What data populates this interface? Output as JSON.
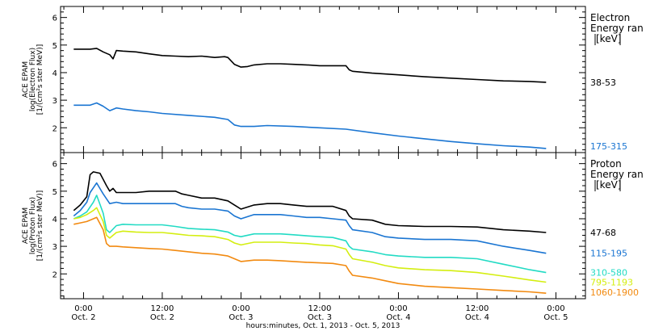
{
  "xlabel": "hours:minutes, Oct. 1, 2013 - Oct. 5, 2013",
  "x_ticks": [
    {
      "time": "0:00",
      "day": "Oct. 2",
      "hour": 0
    },
    {
      "time": "12:00",
      "day": "Oct. 2",
      "hour": 12
    },
    {
      "time": "0:00",
      "day": "Oct. 3",
      "hour": 24
    },
    {
      "time": "12:00",
      "day": "Oct. 3",
      "hour": 36
    },
    {
      "time": "0:00",
      "day": "Oct. 4",
      "hour": 48
    },
    {
      "time": "12:00",
      "day": "Oct. 4",
      "hour": 60
    },
    {
      "time": "0:00",
      "day": "Oct. 5",
      "hour": 72
    }
  ],
  "chart_data": [
    {
      "type": "line",
      "ylabel": [
        "ACE EPAM",
        "log(Electron Flux)",
        "[1/(cm²s ster MeV)]"
      ],
      "ylim": [
        1.1,
        6.4
      ],
      "yticks": [
        2,
        3,
        4,
        5,
        6
      ],
      "legend_title": [
        "Electron",
        "Energy ran",
        "[keV]"
      ],
      "series": [
        {
          "name": "38-53",
          "color": "#000000",
          "points": [
            [
              -1.5,
              4.85
            ],
            [
              1,
              4.85
            ],
            [
              2,
              4.88
            ],
            [
              3,
              4.75
            ],
            [
              4,
              4.65
            ],
            [
              4.5,
              4.5
            ],
            [
              5,
              4.8
            ],
            [
              6,
              4.78
            ],
            [
              8,
              4.75
            ],
            [
              10,
              4.68
            ],
            [
              12,
              4.62
            ],
            [
              14,
              4.6
            ],
            [
              16,
              4.58
            ],
            [
              18,
              4.6
            ],
            [
              20,
              4.55
            ],
            [
              21.5,
              4.58
            ],
            [
              22,
              4.55
            ],
            [
              23,
              4.3
            ],
            [
              24,
              4.2
            ],
            [
              25,
              4.22
            ],
            [
              26,
              4.28
            ],
            [
              28,
              4.32
            ],
            [
              30,
              4.32
            ],
            [
              32,
              4.3
            ],
            [
              34,
              4.28
            ],
            [
              36,
              4.25
            ],
            [
              38,
              4.25
            ],
            [
              40,
              4.25
            ],
            [
              40.5,
              4.1
            ],
            [
              41,
              4.05
            ],
            [
              44,
              3.98
            ],
            [
              48,
              3.92
            ],
            [
              52,
              3.85
            ],
            [
              56,
              3.8
            ],
            [
              60,
              3.75
            ],
            [
              64,
              3.7
            ],
            [
              68,
              3.68
            ],
            [
              70.5,
              3.65
            ]
          ]
        },
        {
          "name": "175-315",
          "color": "#1a75d2",
          "points": [
            [
              -1.5,
              2.82
            ],
            [
              1,
              2.82
            ],
            [
              2,
              2.9
            ],
            [
              3,
              2.78
            ],
            [
              4,
              2.62
            ],
            [
              5,
              2.72
            ],
            [
              6,
              2.68
            ],
            [
              8,
              2.62
            ],
            [
              10,
              2.58
            ],
            [
              12,
              2.52
            ],
            [
              16,
              2.45
            ],
            [
              20,
              2.38
            ],
            [
              22,
              2.3
            ],
            [
              23,
              2.1
            ],
            [
              24,
              2.05
            ],
            [
              26,
              2.05
            ],
            [
              28,
              2.08
            ],
            [
              32,
              2.05
            ],
            [
              36,
              2.0
            ],
            [
              40,
              1.95
            ],
            [
              44,
              1.82
            ],
            [
              48,
              1.7
            ],
            [
              52,
              1.6
            ],
            [
              56,
              1.5
            ],
            [
              60,
              1.42
            ],
            [
              64,
              1.35
            ],
            [
              68,
              1.3
            ],
            [
              70.5,
              1.25
            ]
          ]
        }
      ]
    },
    {
      "type": "line",
      "ylabel": [
        "ACE EPAM",
        "log(Proton Flux)",
        "[1/(cm²s ster MeV)]"
      ],
      "ylim": [
        1.1,
        6.4
      ],
      "yticks": [
        2,
        3,
        4,
        5,
        6
      ],
      "legend_title": [
        "Proton",
        "Energy ran",
        "[keV]"
      ],
      "series": [
        {
          "name": "47-68",
          "color": "#000000",
          "points": [
            [
              -1.5,
              4.3
            ],
            [
              -0.5,
              4.5
            ],
            [
              0.5,
              4.8
            ],
            [
              1,
              5.6
            ],
            [
              1.5,
              5.7
            ],
            [
              2.5,
              5.65
            ],
            [
              3.5,
              5.2
            ],
            [
              4,
              5.0
            ],
            [
              4.5,
              5.1
            ],
            [
              5,
              4.95
            ],
            [
              6,
              4.95
            ],
            [
              8,
              4.95
            ],
            [
              10,
              5.0
            ],
            [
              12,
              5.0
            ],
            [
              14,
              5.0
            ],
            [
              15,
              4.9
            ],
            [
              16,
              4.85
            ],
            [
              18,
              4.75
            ],
            [
              20,
              4.75
            ],
            [
              22,
              4.65
            ],
            [
              23,
              4.5
            ],
            [
              24,
              4.35
            ],
            [
              26,
              4.5
            ],
            [
              28,
              4.55
            ],
            [
              30,
              4.55
            ],
            [
              32,
              4.5
            ],
            [
              34,
              4.45
            ],
            [
              36,
              4.45
            ],
            [
              38,
              4.45
            ],
            [
              40,
              4.3
            ],
            [
              40.5,
              4.1
            ],
            [
              41,
              4.0
            ],
            [
              44,
              3.95
            ],
            [
              46,
              3.8
            ],
            [
              48,
              3.75
            ],
            [
              52,
              3.72
            ],
            [
              56,
              3.72
            ],
            [
              60,
              3.7
            ],
            [
              64,
              3.6
            ],
            [
              68,
              3.55
            ],
            [
              70.5,
              3.5
            ]
          ]
        },
        {
          "name": "115-195",
          "color": "#1a75d2",
          "points": [
            [
              -1.5,
              4.1
            ],
            [
              -0.5,
              4.3
            ],
            [
              0.5,
              4.6
            ],
            [
              1,
              4.95
            ],
            [
              2,
              5.3
            ],
            [
              3,
              4.9
            ],
            [
              4,
              4.55
            ],
            [
              5,
              4.6
            ],
            [
              6,
              4.55
            ],
            [
              8,
              4.55
            ],
            [
              10,
              4.55
            ],
            [
              12,
              4.55
            ],
            [
              14,
              4.55
            ],
            [
              15,
              4.45
            ],
            [
              16,
              4.4
            ],
            [
              18,
              4.35
            ],
            [
              20,
              4.35
            ],
            [
              22,
              4.28
            ],
            [
              23,
              4.1
            ],
            [
              24,
              4.0
            ],
            [
              26,
              4.15
            ],
            [
              28,
              4.15
            ],
            [
              30,
              4.15
            ],
            [
              32,
              4.1
            ],
            [
              34,
              4.05
            ],
            [
              36,
              4.05
            ],
            [
              38,
              4.0
            ],
            [
              40,
              3.95
            ],
            [
              40.5,
              3.75
            ],
            [
              41,
              3.6
            ],
            [
              44,
              3.5
            ],
            [
              46,
              3.35
            ],
            [
              48,
              3.3
            ],
            [
              52,
              3.25
            ],
            [
              56,
              3.25
            ],
            [
              60,
              3.2
            ],
            [
              64,
              3.0
            ],
            [
              68,
              2.85
            ],
            [
              70.5,
              2.75
            ]
          ]
        },
        {
          "name": "310-580",
          "color": "#22dbc4",
          "points": [
            [
              -1.5,
              4.0
            ],
            [
              -0.5,
              4.1
            ],
            [
              0.5,
              4.25
            ],
            [
              1.5,
              4.6
            ],
            [
              2,
              4.85
            ],
            [
              3,
              4.2
            ],
            [
              3.5,
              3.6
            ],
            [
              4,
              3.5
            ],
            [
              5,
              3.75
            ],
            [
              6,
              3.8
            ],
            [
              8,
              3.78
            ],
            [
              10,
              3.78
            ],
            [
              12,
              3.78
            ],
            [
              14,
              3.72
            ],
            [
              16,
              3.65
            ],
            [
              18,
              3.62
            ],
            [
              20,
              3.6
            ],
            [
              22,
              3.52
            ],
            [
              23,
              3.4
            ],
            [
              24,
              3.35
            ],
            [
              26,
              3.45
            ],
            [
              28,
              3.45
            ],
            [
              30,
              3.45
            ],
            [
              32,
              3.42
            ],
            [
              34,
              3.38
            ],
            [
              36,
              3.35
            ],
            [
              38,
              3.32
            ],
            [
              40,
              3.2
            ],
            [
              40.5,
              3.0
            ],
            [
              41,
              2.9
            ],
            [
              44,
              2.8
            ],
            [
              46,
              2.7
            ],
            [
              48,
              2.65
            ],
            [
              52,
              2.6
            ],
            [
              56,
              2.6
            ],
            [
              60,
              2.55
            ],
            [
              64,
              2.35
            ],
            [
              68,
              2.15
            ],
            [
              70.5,
              2.05
            ]
          ]
        },
        {
          "name": "795-1193",
          "color": "#d4ee10",
          "points": [
            [
              -1.5,
              4.0
            ],
            [
              -0.5,
              4.05
            ],
            [
              0.5,
              4.15
            ],
            [
              1.5,
              4.3
            ],
            [
              2,
              4.4
            ],
            [
              3,
              3.9
            ],
            [
              3.5,
              3.4
            ],
            [
              4,
              3.3
            ],
            [
              5,
              3.5
            ],
            [
              6,
              3.55
            ],
            [
              8,
              3.52
            ],
            [
              10,
              3.5
            ],
            [
              12,
              3.5
            ],
            [
              14,
              3.45
            ],
            [
              16,
              3.4
            ],
            [
              18,
              3.38
            ],
            [
              20,
              3.35
            ],
            [
              22,
              3.25
            ],
            [
              23,
              3.12
            ],
            [
              24,
              3.05
            ],
            [
              26,
              3.15
            ],
            [
              28,
              3.15
            ],
            [
              30,
              3.15
            ],
            [
              32,
              3.12
            ],
            [
              34,
              3.1
            ],
            [
              36,
              3.05
            ],
            [
              38,
              3.02
            ],
            [
              40,
              2.9
            ],
            [
              40.5,
              2.7
            ],
            [
              41,
              2.55
            ],
            [
              44,
              2.42
            ],
            [
              46,
              2.3
            ],
            [
              48,
              2.22
            ],
            [
              52,
              2.15
            ],
            [
              56,
              2.12
            ],
            [
              60,
              2.05
            ],
            [
              64,
              1.92
            ],
            [
              68,
              1.78
            ],
            [
              70.5,
              1.7
            ]
          ]
        },
        {
          "name": "1060-1900",
          "color": "#f28a10",
          "points": [
            [
              -1.5,
              3.8
            ],
            [
              -0.5,
              3.85
            ],
            [
              0.5,
              3.9
            ],
            [
              1.5,
              4.0
            ],
            [
              2,
              4.05
            ],
            [
              3,
              3.6
            ],
            [
              3.5,
              3.1
            ],
            [
              4,
              3.0
            ],
            [
              5,
              3.0
            ],
            [
              6,
              2.98
            ],
            [
              8,
              2.95
            ],
            [
              10,
              2.92
            ],
            [
              12,
              2.9
            ],
            [
              14,
              2.85
            ],
            [
              16,
              2.8
            ],
            [
              18,
              2.75
            ],
            [
              20,
              2.72
            ],
            [
              22,
              2.65
            ],
            [
              23,
              2.55
            ],
            [
              24,
              2.45
            ],
            [
              26,
              2.5
            ],
            [
              28,
              2.5
            ],
            [
              30,
              2.48
            ],
            [
              32,
              2.45
            ],
            [
              34,
              2.42
            ],
            [
              36,
              2.4
            ],
            [
              38,
              2.38
            ],
            [
              40,
              2.3
            ],
            [
              40.5,
              2.1
            ],
            [
              41,
              1.95
            ],
            [
              44,
              1.85
            ],
            [
              46,
              1.75
            ],
            [
              48,
              1.65
            ],
            [
              52,
              1.55
            ],
            [
              56,
              1.5
            ],
            [
              60,
              1.45
            ],
            [
              64,
              1.4
            ],
            [
              68,
              1.35
            ],
            [
              70.5,
              1.3
            ]
          ]
        }
      ]
    }
  ]
}
